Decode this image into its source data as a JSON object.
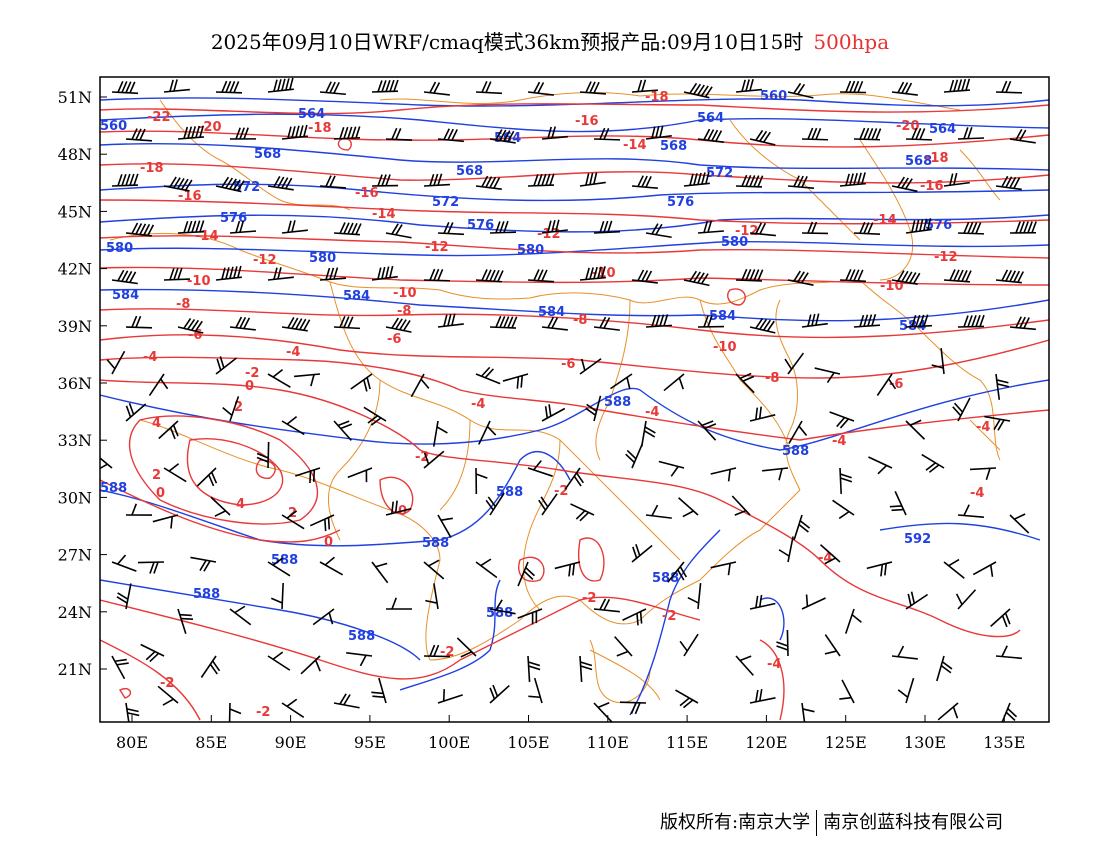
{
  "title": {
    "text": "2025年09月10日WRF/cmaq模式36km预报产品:09月10日15时",
    "level": "500hpa"
  },
  "footer": {
    "left": "版权所有:南京大学",
    "right": "南京创蓝科技有限公司"
  },
  "axes": {
    "lon_ticks": [
      "80E",
      "85E",
      "90E",
      "95E",
      "100E",
      "105E",
      "110E",
      "115E",
      "120E",
      "125E",
      "130E",
      "135E"
    ],
    "lat_ticks": [
      "51N",
      "48N",
      "45N",
      "42N",
      "39N",
      "36N",
      "33N",
      "30N",
      "27N",
      "24N",
      "21N"
    ]
  },
  "colors": {
    "height_contour": "#2040e0",
    "temperature_contour": "#e83838",
    "boundary": "#e8902a",
    "wind_barb": "#000000"
  },
  "height_labels": [
    "560",
    "564",
    "568",
    "572",
    "576",
    "580",
    "584",
    "588",
    "592"
  ],
  "temperature_labels": [
    "-22",
    "-20",
    "-18",
    "-16",
    "-14",
    "-12",
    "-10",
    "-8",
    "-6",
    "-4",
    "-2",
    "0",
    "2",
    "4"
  ]
}
